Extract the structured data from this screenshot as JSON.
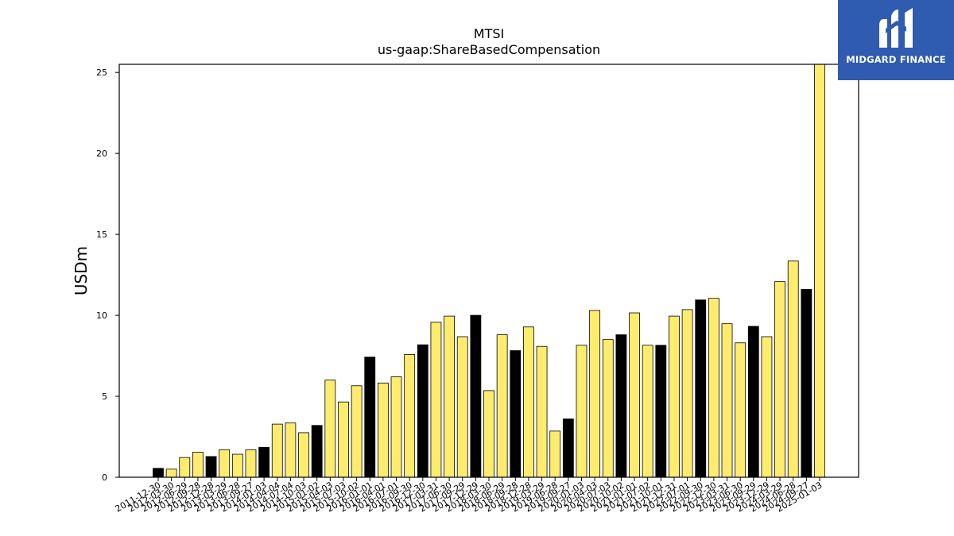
{
  "brand": {
    "name": "MIDGARD FINANCE",
    "color": "#2f5bb0"
  },
  "chart_data": {
    "type": "bar",
    "title": "MTSI",
    "subtitle": "us-gaap:ShareBasedCompensation",
    "ylabel": "USDm",
    "xlabel": "",
    "ylim": [
      0,
      25.5
    ],
    "yticks": [
      0,
      5,
      10,
      15,
      20,
      25
    ],
    "grid": false,
    "colors": {
      "quarter": "#ffec6e",
      "annual": "#000000",
      "edge": "#000000"
    },
    "categories": [
      "2011-12-30",
      "2012-03-30",
      "2012-06-29",
      "2012-09-28",
      "2012-12-28",
      "2013-03-29",
      "2013-06-28",
      "2013-09-27",
      "2014-01-03",
      "2014-04-04",
      "2014-07-04",
      "2014-10-03",
      "2015-01-02",
      "2015-04-03",
      "2015-07-03",
      "2015-10-02",
      "2016-01-01",
      "2016-04-01",
      "2016-07-01",
      "2016-09-30",
      "2016-12-30",
      "2017-03-31",
      "2017-06-30",
      "2017-09-29",
      "2017-12-29",
      "2018-03-30",
      "2018-06-29",
      "2018-09-28",
      "2018-12-28",
      "2019-03-29",
      "2019-06-28",
      "2019-09-27",
      "2020-01-03",
      "2020-04-03",
      "2020-07-03",
      "2020-10-02",
      "2021-01-01",
      "2021-07-02",
      "2021-10-01",
      "2021-12-31",
      "2022-07-01",
      "2022-09-30",
      "2022-12-30",
      "2023-03-31",
      "2023-06-30",
      "2023-09-29",
      "2023-12-29",
      "2024-03-29",
      "2024-06-28",
      "2024-09-27",
      "2025-01-03"
    ],
    "values": [
      0.55,
      0.5,
      1.22,
      1.55,
      1.28,
      1.7,
      1.42,
      1.7,
      1.85,
      3.28,
      3.35,
      2.75,
      3.2,
      6.0,
      4.65,
      5.65,
      7.42,
      5.82,
      6.2,
      7.58,
      8.18,
      9.57,
      9.95,
      8.68,
      10.0,
      5.35,
      8.8,
      7.82,
      9.28,
      8.08,
      2.85,
      3.6,
      8.15,
      10.3,
      8.5,
      8.8,
      10.15,
      8.15,
      8.15,
      9.95,
      10.35,
      10.95,
      11.05,
      9.48,
      8.3,
      9.32,
      8.68,
      12.08,
      13.35,
      11.6,
      25.5
    ],
    "annual_flags": [
      1,
      0,
      0,
      0,
      1,
      0,
      0,
      0,
      1,
      0,
      0,
      0,
      1,
      0,
      0,
      0,
      1,
      0,
      0,
      0,
      1,
      0,
      0,
      0,
      1,
      0,
      0,
      1,
      0,
      0,
      0,
      1,
      0,
      0,
      0,
      1,
      0,
      0,
      1,
      0,
      0,
      1,
      0,
      0,
      0,
      1,
      0,
      0,
      0,
      1,
      0
    ]
  }
}
